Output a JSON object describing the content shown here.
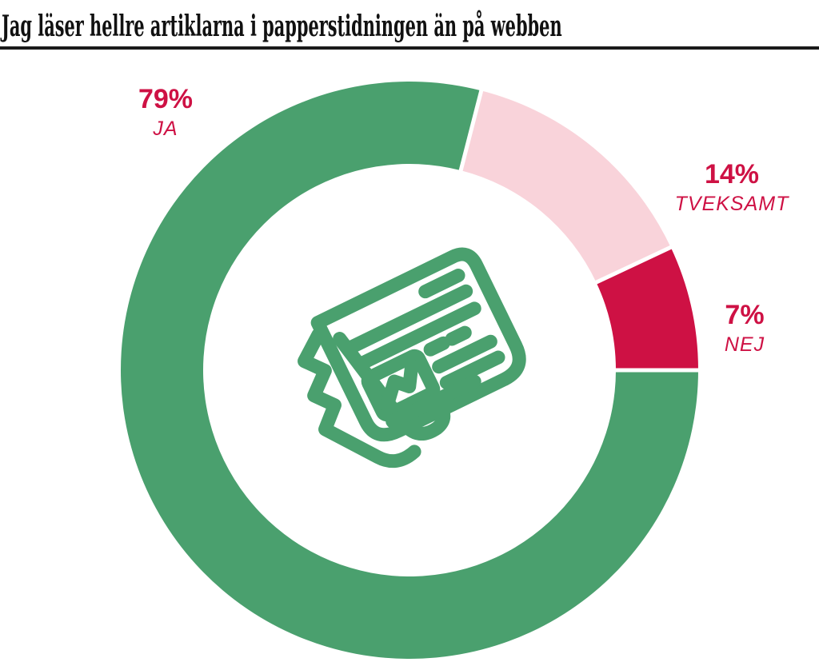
{
  "title": "Jag läser hellre artiklarna i papperstidningen än på webben",
  "chart_data": {
    "type": "pie",
    "variant": "donut",
    "title": "Jag läser hellre artiklarna i papperstidningen än på webben",
    "categories": [
      "JA",
      "TVEKSAMT",
      "NEJ"
    ],
    "values": [
      79,
      14,
      7
    ],
    "unit": "%",
    "series": [
      {
        "label": "JA",
        "value": 79,
        "pct_label": "79%",
        "color": "#4aa06e"
      },
      {
        "label": "TVEKSAMT",
        "value": 14,
        "pct_label": "14%",
        "color": "#f9d3da"
      },
      {
        "label": "NEJ",
        "value": 7,
        "pct_label": "7%",
        "color": "#ce1144"
      }
    ],
    "start_angle_clockwise_from_top": 90,
    "direction": "clockwise",
    "inner_radius_ratio": 0.715,
    "segment_gap_color": "#ffffff",
    "label_color": "#ce1144",
    "legend_position": "outside-callouts",
    "center_icon": "newspaper-icon",
    "center_icon_color": "#4aa06e"
  },
  "styles": {
    "title_color": "#111111",
    "rule_color": "#1a1a1a",
    "background": "#ffffff"
  }
}
